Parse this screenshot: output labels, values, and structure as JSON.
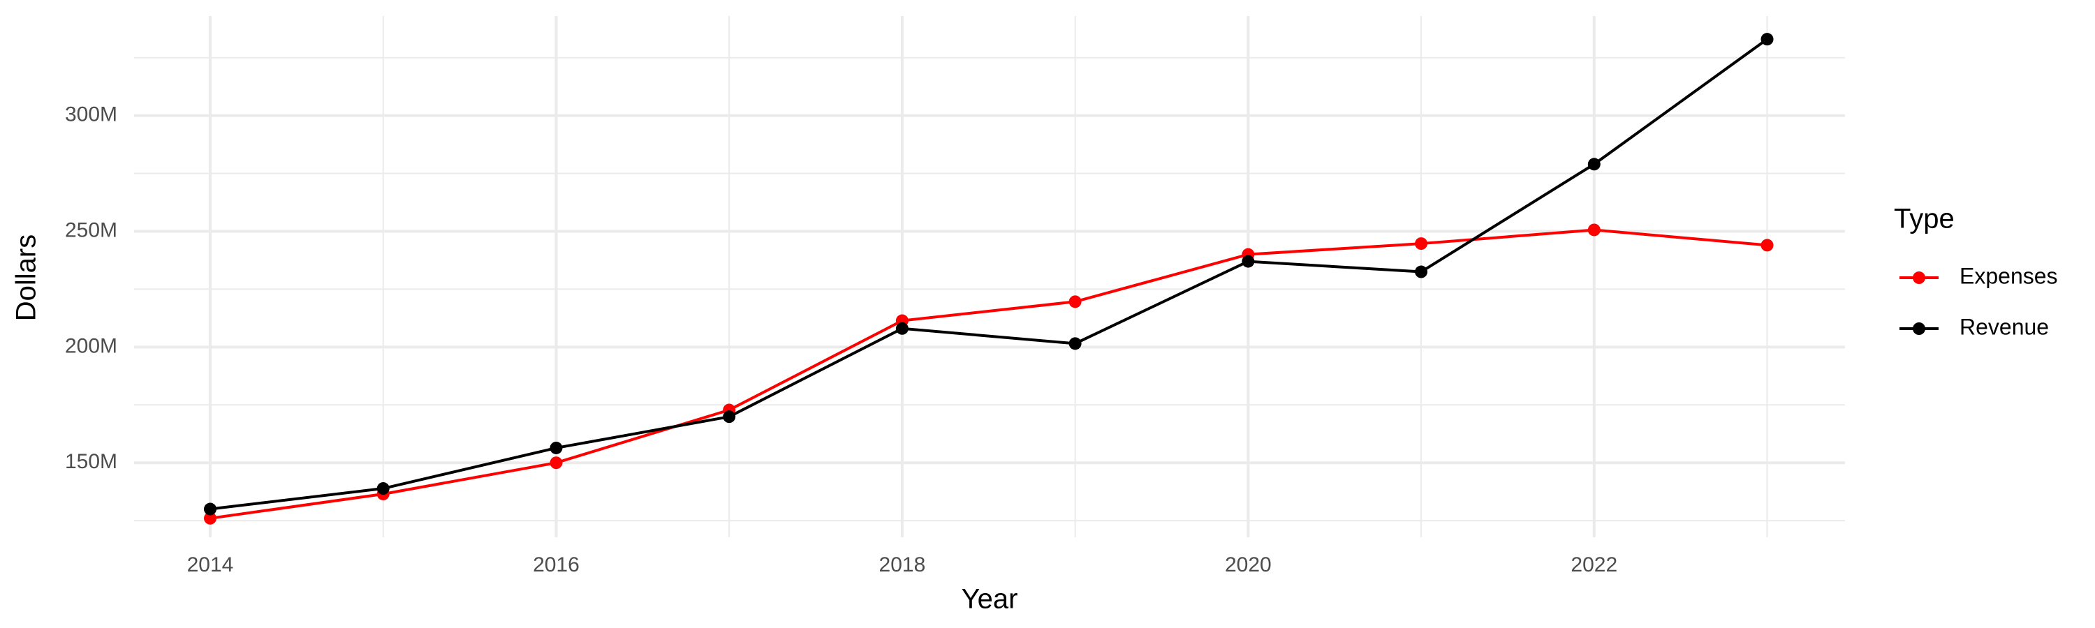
{
  "chart_data": {
    "type": "line",
    "x_label": "Year",
    "y_label": "Dollars",
    "legend_title": "Type",
    "x": [
      2014,
      2015,
      2016,
      2017,
      2018,
      2019,
      2020,
      2021,
      2022,
      2023
    ],
    "series": [
      {
        "name": "Expenses",
        "color": "#ff0000",
        "values": [
          126000000,
          136500000,
          150000000,
          172800000,
          211400000,
          219600000,
          240000000,
          244700000,
          250600000,
          244000000
        ]
      },
      {
        "name": "Revenue",
        "color": "#000000",
        "values": [
          130000000,
          138900000,
          156400000,
          169900000,
          208000000,
          201500000,
          237000000,
          232500000,
          279000000,
          333000000
        ]
      }
    ],
    "xlim": [
      2013.56,
      2023.45
    ],
    "xticks": [
      2014,
      2016,
      2018,
      2020,
      2022
    ],
    "ylim": [
      117800000,
      343000000
    ],
    "yticks": [
      {
        "value": 150000000,
        "label": "150M"
      },
      {
        "value": 200000000,
        "label": "200M"
      },
      {
        "value": 250000000,
        "label": "250M"
      },
      {
        "value": 300000000,
        "label": "300M"
      }
    ],
    "grid": true,
    "minor_grid": true,
    "legend": "right"
  }
}
